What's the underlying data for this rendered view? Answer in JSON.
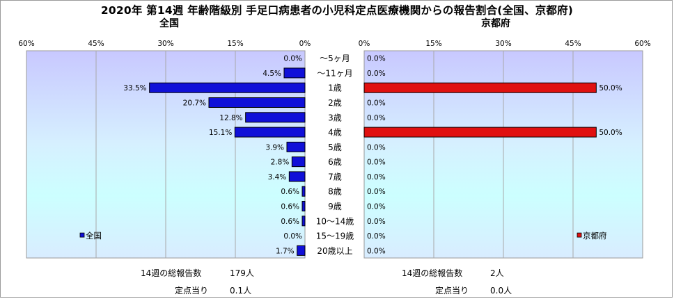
{
  "title": "2020年 第14週 年齢階級別 手足口病患者の小児科定点医療機関からの報告割合(全国、京都府)",
  "chart_data": [
    {
      "type": "bar",
      "orientation": "horizontal",
      "direction": "right-to-left",
      "title": "全国",
      "categories": [
        "～5ヶ月",
        "～11ヶ月",
        "1歳",
        "2歳",
        "3歳",
        "4歳",
        "5歳",
        "6歳",
        "7歳",
        "8歳",
        "9歳",
        "10～14歳",
        "15～19歳",
        "20歳以上"
      ],
      "series": [
        {
          "name": "全国",
          "values": [
            0.0,
            4.5,
            33.5,
            20.7,
            12.8,
            15.1,
            3.9,
            2.8,
            3.4,
            0.6,
            0.6,
            0.6,
            0.0,
            1.7
          ]
        }
      ],
      "value_labels": [
        "0.0%",
        "4.5%",
        "33.5%",
        "20.7%",
        "12.8%",
        "15.1%",
        "3.9%",
        "2.8%",
        "3.4%",
        "0.6%",
        "0.6%",
        "0.6%",
        "0.0%",
        "1.7%"
      ],
      "xlim": [
        0,
        60
      ],
      "ticks": [
        0,
        15,
        30,
        45,
        60
      ],
      "tick_labels": [
        "0%",
        "15%",
        "30%",
        "45%",
        "60%"
      ],
      "grid": true,
      "legend": "bottom-left",
      "bar_color": "#1010d8"
    },
    {
      "type": "bar",
      "orientation": "horizontal",
      "direction": "left-to-right",
      "title": "京都府",
      "categories": [
        "～5ヶ月",
        "～11ヶ月",
        "1歳",
        "2歳",
        "3歳",
        "4歳",
        "5歳",
        "6歳",
        "7歳",
        "8歳",
        "9歳",
        "10～14歳",
        "15～19歳",
        "20歳以上"
      ],
      "series": [
        {
          "name": "京都府",
          "values": [
            0.0,
            0.0,
            50.0,
            0.0,
            0.0,
            50.0,
            0.0,
            0.0,
            0.0,
            0.0,
            0.0,
            0.0,
            0.0,
            0.0
          ]
        }
      ],
      "value_labels": [
        "0.0%",
        "0.0%",
        "50.0%",
        "0.0%",
        "0.0%",
        "50.0%",
        "0.0%",
        "0.0%",
        "0.0%",
        "0.0%",
        "0.0%",
        "0.0%",
        "0.0%",
        "0.0%"
      ],
      "xlim": [
        0,
        60
      ],
      "ticks": [
        0,
        15,
        30,
        45,
        60
      ],
      "tick_labels": [
        "0%",
        "15%",
        "30%",
        "45%",
        "60%"
      ],
      "grid": true,
      "legend": "bottom-right",
      "bar_color": "#e01010"
    }
  ],
  "stats": {
    "national": {
      "total_label": "14週の総報告数",
      "total_value": "179人",
      "per_site_label": "定点当り",
      "per_site_value": "0.1人"
    },
    "kyoto": {
      "total_label": "14週の総報告数",
      "total_value": "2人",
      "per_site_label": "定点当り",
      "per_site_value": "0.0人"
    }
  }
}
